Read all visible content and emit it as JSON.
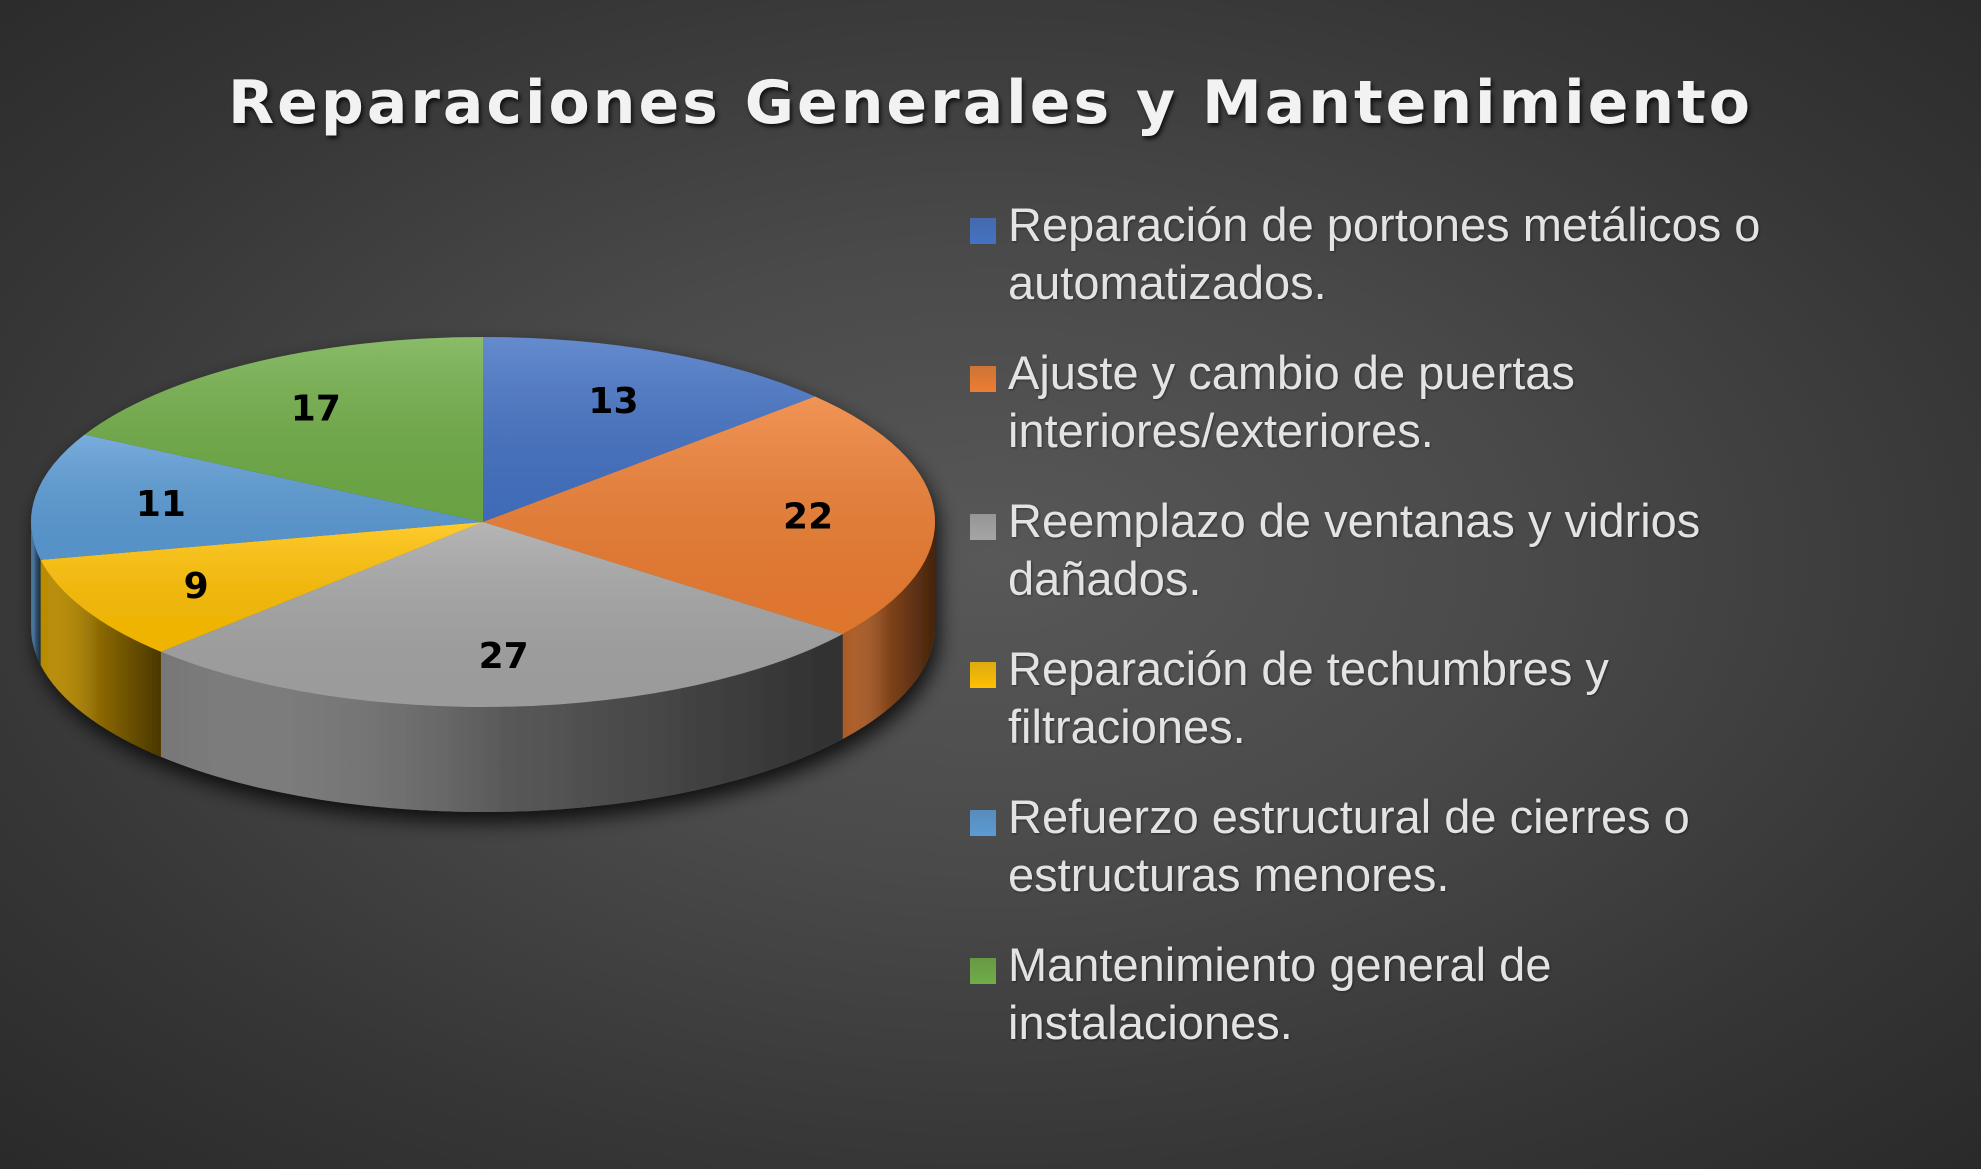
{
  "title": "Reparaciones Generales y Mantenimiento",
  "legend": {
    "items": [
      {
        "label": "Reparación de portones metálicos o\nautomatizados.",
        "color": "#4472C4"
      },
      {
        "label": "Ajuste y cambio de puertas\ninteriores/exteriores.",
        "color": "#ED7D31"
      },
      {
        "label": "Reemplazo de ventanas y vidrios\ndañados.",
        "color": "#A5A5A5"
      },
      {
        "label": "Reparación de techumbres y\nfiltraciones.",
        "color": "#FFC000"
      },
      {
        "label": "Refuerzo estructural de cierres o\nestructuras menores.",
        "color": "#5B9BD5"
      },
      {
        "label": "Mantenimiento general de\ninstalaciones.",
        "color": "#70AD47"
      }
    ]
  },
  "chart_data": {
    "type": "pie",
    "style": "3d",
    "title": "Reparaciones Generales y Mantenimiento",
    "categories": [
      "Reparación de portones metálicos o automatizados.",
      "Ajuste y cambio de puertas interiores/exteriores.",
      "Reemplazo de ventanas y vidrios dañados.",
      "Reparación de techumbres y filtraciones.",
      "Refuerzo estructural de cierres o estructuras menores.",
      "Mantenimiento general de instalaciones."
    ],
    "values": [
      13,
      22,
      27,
      9,
      11,
      17
    ],
    "labels": [
      "13",
      "22",
      "27",
      "9",
      "11",
      "17"
    ],
    "colors": [
      "#4472C4",
      "#ED7D31",
      "#A5A5A5",
      "#FFC000",
      "#5B9BD5",
      "#70AD47"
    ],
    "start_angle_deg": 0,
    "direction": "clockwise",
    "legend_position": "right",
    "data_labels": true
  }
}
